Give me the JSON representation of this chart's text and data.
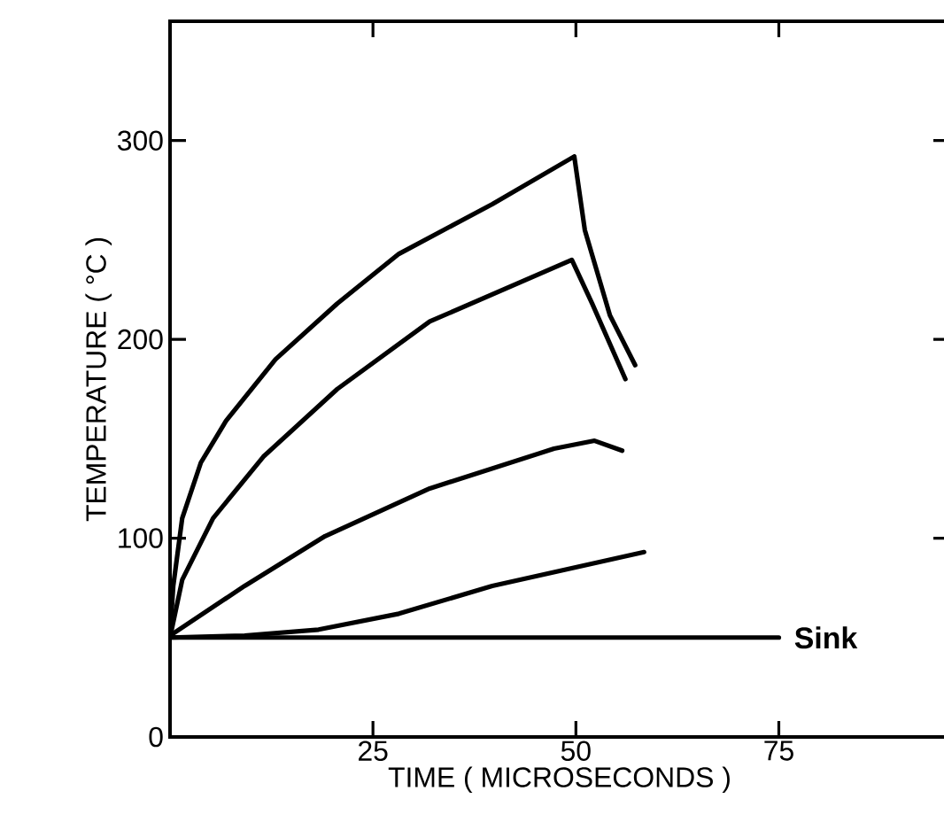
{
  "chart_data": {
    "type": "line",
    "xlabel": "TIME ( MICROSECONDS )",
    "ylabel": "TEMPERATURE ( °C )",
    "xlim": [
      0,
      96
    ],
    "ylim": [
      0,
      360
    ],
    "xticks": [
      25,
      50,
      75
    ],
    "yticks": [
      0,
      100,
      200,
      300
    ],
    "marker": "none",
    "line_style": "solid",
    "series": [
      {
        "color": "#000000",
        "x": [
          0,
          0.4,
          1.5,
          3.8,
          6.9,
          13,
          20.6,
          28.2,
          39.7,
          49.8,
          51.1,
          54.2,
          57.3
        ],
        "values": [
          51,
          76,
          110,
          138,
          159,
          190,
          218,
          243,
          268,
          292,
          255,
          212,
          187
        ]
      },
      {
        "color": "#000000",
        "x": [
          0,
          1.5,
          5.3,
          11.5,
          20.6,
          32,
          49.5,
          52,
          56.1
        ],
        "values": [
          50,
          79,
          110,
          141,
          175,
          209,
          240,
          218,
          180
        ]
      },
      {
        "color": "#000000",
        "x": [
          0,
          9.2,
          19.1,
          32,
          47.3,
          52.3,
          55.7
        ],
        "values": [
          51,
          76,
          101,
          125,
          145,
          149,
          144
        ]
      },
      {
        "color": "#000000",
        "x": [
          0,
          9.2,
          18.3,
          28.2,
          39.7,
          58.4
        ],
        "values": [
          50,
          51,
          54,
          62,
          76,
          93
        ]
      },
      {
        "name": "Sink",
        "color": "#000000",
        "x": [
          0,
          75
        ],
        "values": [
          50,
          50
        ]
      }
    ]
  }
}
